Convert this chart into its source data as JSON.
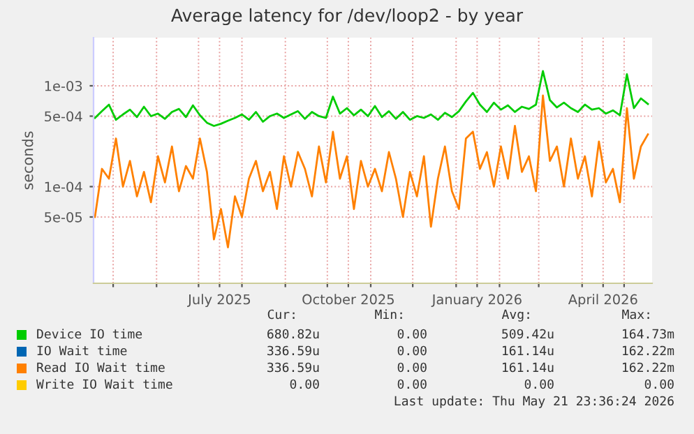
{
  "chart_data": {
    "type": "line",
    "title": "Average latency for /dev/loop2 - by year",
    "ylabel": "seconds",
    "log": "y",
    "grid": true,
    "legend": "bottom",
    "marker": "none",
    "line_style": "solid",
    "xlim": [
      "2025-04-17",
      "2026-05-21"
    ],
    "xticks": [
      {
        "value": "2025-05-01",
        "label": null
      },
      {
        "value": "2025-06-01",
        "label": null
      },
      {
        "value": "2025-07-01",
        "label": null
      },
      {
        "value": "2025-07-16",
        "label": "July 2025"
      },
      {
        "value": "2025-08-01",
        "label": null
      },
      {
        "value": "2025-09-01",
        "label": null
      },
      {
        "value": "2025-10-01",
        "label": null
      },
      {
        "value": "2025-10-16",
        "label": "October 2025"
      },
      {
        "value": "2025-11-01",
        "label": null
      },
      {
        "value": "2025-12-01",
        "label": null
      },
      {
        "value": "2026-01-01",
        "label": null
      },
      {
        "value": "2026-01-16",
        "label": "January 2026"
      },
      {
        "value": "2026-02-01",
        "label": null
      },
      {
        "value": "2026-03-01",
        "label": null
      },
      {
        "value": "2026-04-01",
        "label": null
      },
      {
        "value": "2026-04-16",
        "label": "April 2026"
      },
      {
        "value": "2026-05-01",
        "label": null
      }
    ],
    "ylim": [
      1.1e-05,
      0.003
    ],
    "yticks": [
      {
        "value": 5e-05,
        "label": "5e-05"
      },
      {
        "value": 0.0001,
        "label": "1e-04"
      },
      {
        "value": 0.0005,
        "label": "5e-04"
      },
      {
        "value": 0.001,
        "label": "1e-03"
      }
    ],
    "x": [
      "2025-04-18",
      "2025-04-23",
      "2025-04-28",
      "2025-05-03",
      "2025-05-08",
      "2025-05-13",
      "2025-05-18",
      "2025-05-23",
      "2025-05-28",
      "2025-06-02",
      "2025-06-07",
      "2025-06-12",
      "2025-06-17",
      "2025-06-22",
      "2025-06-27",
      "2025-07-02",
      "2025-07-07",
      "2025-07-12",
      "2025-07-17",
      "2025-07-22",
      "2025-07-27",
      "2025-08-01",
      "2025-08-06",
      "2025-08-11",
      "2025-08-16",
      "2025-08-21",
      "2025-08-26",
      "2025-08-31",
      "2025-09-05",
      "2025-09-10",
      "2025-09-15",
      "2025-09-20",
      "2025-09-25",
      "2025-09-30",
      "2025-10-05",
      "2025-10-10",
      "2025-10-15",
      "2025-10-20",
      "2025-10-25",
      "2025-10-30",
      "2025-11-04",
      "2025-11-09",
      "2025-11-14",
      "2025-11-19",
      "2025-11-24",
      "2025-11-29",
      "2025-12-04",
      "2025-12-09",
      "2025-12-14",
      "2025-12-19",
      "2025-12-24",
      "2025-12-29",
      "2026-01-03",
      "2026-01-08",
      "2026-01-13",
      "2026-01-18",
      "2026-01-23",
      "2026-01-28",
      "2026-02-02",
      "2026-02-07",
      "2026-02-12",
      "2026-02-17",
      "2026-02-22",
      "2026-02-27",
      "2026-03-04",
      "2026-03-09",
      "2026-03-14",
      "2026-03-19",
      "2026-03-24",
      "2026-03-29",
      "2026-04-03",
      "2026-04-08",
      "2026-04-13",
      "2026-04-18",
      "2026-04-23",
      "2026-04-28",
      "2026-05-03",
      "2026-05-08",
      "2026-05-13",
      "2026-05-18"
    ],
    "series": [
      {
        "name": "Device IO time",
        "color": "#00cc00",
        "values": [
          0.00048,
          0.00056,
          0.00065,
          0.00046,
          0.00052,
          0.00058,
          0.00049,
          0.00062,
          0.0005,
          0.00053,
          0.00047,
          0.00055,
          0.00059,
          0.00049,
          0.00064,
          0.00051,
          0.00043,
          0.0004,
          0.00042,
          0.00045,
          0.00048,
          0.00052,
          0.00046,
          0.00055,
          0.00044,
          0.0005,
          0.00053,
          0.00048,
          0.00052,
          0.00056,
          0.00047,
          0.00055,
          0.0005,
          0.00048,
          0.00078,
          0.00053,
          0.0006,
          0.00051,
          0.00058,
          0.0005,
          0.00063,
          0.00049,
          0.00056,
          0.00047,
          0.00055,
          0.00046,
          0.0005,
          0.00048,
          0.00052,
          0.00046,
          0.00054,
          0.00049,
          0.00056,
          0.0007,
          0.00085,
          0.00065,
          0.00055,
          0.00068,
          0.00058,
          0.00064,
          0.00055,
          0.00062,
          0.00059,
          0.00065,
          0.0014,
          0.00072,
          0.00061,
          0.00068,
          0.0006,
          0.00055,
          0.00065,
          0.00058,
          0.0006,
          0.00053,
          0.00057,
          0.00051,
          0.0013,
          0.0006,
          0.00075,
          0.00066
        ]
      },
      {
        "name": "IO Wait time",
        "color": "#0066b3",
        "values": [
          null,
          null,
          null,
          null,
          null,
          null,
          null,
          null,
          null,
          null,
          null,
          null,
          null,
          null,
          null,
          null,
          null,
          null,
          null,
          null,
          null,
          null,
          null,
          null,
          null,
          null,
          null,
          null,
          null,
          null,
          null,
          null,
          null,
          null,
          null,
          null,
          null,
          null,
          null,
          null,
          null,
          null,
          null,
          null,
          null,
          null,
          null,
          null,
          null,
          null,
          null,
          null,
          null,
          null,
          null,
          null,
          null,
          null,
          null,
          null,
          null,
          null,
          null,
          null,
          null,
          null,
          null,
          null,
          null,
          null,
          null,
          null,
          null,
          null,
          null,
          null,
          null,
          null,
          null,
          null
        ]
      },
      {
        "name": "Read IO Wait time",
        "color": "#ff8000",
        "values": [
          5e-05,
          0.00015,
          0.00012,
          0.0003,
          0.0001,
          0.00018,
          8e-05,
          0.00014,
          7e-05,
          0.0002,
          0.00011,
          0.00025,
          9e-05,
          0.00016,
          0.00012,
          0.0003,
          0.00014,
          3e-05,
          6e-05,
          2.5e-05,
          8e-05,
          5e-05,
          0.00012,
          0.00018,
          9e-05,
          0.00014,
          6e-05,
          0.0002,
          0.0001,
          0.00022,
          0.00015,
          8e-05,
          0.00025,
          0.00011,
          0.00035,
          0.00012,
          0.0002,
          6e-05,
          0.00018,
          0.0001,
          0.00015,
          9e-05,
          0.00022,
          0.00012,
          5e-05,
          0.00014,
          8e-05,
          0.0002,
          4e-05,
          0.00012,
          0.00025,
          9e-05,
          6e-05,
          0.0003,
          0.00035,
          0.00015,
          0.00022,
          0.0001,
          0.00025,
          0.00012,
          0.0004,
          0.00014,
          0.0002,
          9e-05,
          0.0008,
          0.00018,
          0.00025,
          0.0001,
          0.0003,
          0.00012,
          0.0002,
          8e-05,
          0.00028,
          0.00011,
          0.00015,
          7e-05,
          0.0006,
          0.00012,
          0.00025,
          0.00033
        ]
      },
      {
        "name": "Write IO Wait time",
        "color": "#ffcc00",
        "values": [
          null,
          null,
          null,
          null,
          null,
          null,
          null,
          null,
          null,
          null,
          null,
          null,
          null,
          null,
          null,
          null,
          null,
          null,
          null,
          null,
          null,
          null,
          null,
          null,
          null,
          null,
          null,
          null,
          null,
          null,
          null,
          null,
          null,
          null,
          null,
          null,
          null,
          null,
          null,
          null,
          null,
          null,
          null,
          null,
          null,
          null,
          null,
          null,
          null,
          null,
          null,
          null,
          null,
          null,
          null,
          null,
          null,
          null,
          null,
          null,
          null,
          null,
          null,
          null,
          null,
          null,
          null,
          null,
          null,
          null,
          null,
          null,
          null,
          null,
          null,
          null,
          null,
          null,
          null,
          null
        ]
      }
    ],
    "annotations": [
      "Cur:",
      "Min:",
      "Avg:",
      "Max:",
      "680.82u",
      "0.00",
      "509.42u",
      "164.73m",
      "336.59u",
      "0.00",
      "161.14u",
      "162.22m",
      "336.59u",
      "0.00",
      "161.14u",
      "162.22m",
      "0.00",
      "0.00",
      "0.00",
      "0.00",
      "Last update: Thu May 21 23:36:24 2026"
    ]
  }
}
